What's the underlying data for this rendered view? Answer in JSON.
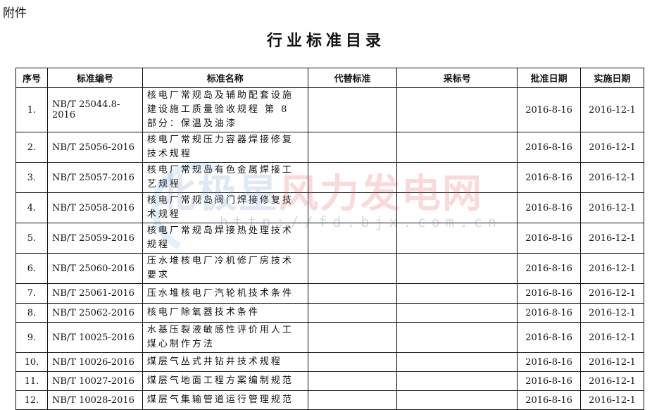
{
  "attachment_label": "附件",
  "title": "行业标准目录",
  "headers": [
    "序号",
    "标准编号",
    "标准名称",
    "代替标准",
    "采标号",
    "批准日期",
    "实施日期"
  ],
  "rows": [
    [
      "1.",
      "NB/T 25044.8-2016",
      "核电厂常规岛及辅助配套设施建设施工质量验收规程 第 8 部分：保温及油漆",
      "",
      "",
      "2016-8-16",
      "2016-12-1"
    ],
    [
      "2.",
      "NB/T 25056-2016",
      "核电厂常规压力容器焊接修复技术规程",
      "",
      "",
      "2016-8-16",
      "2016-12-1"
    ],
    [
      "3.",
      "NB/T 25057-2016",
      "核电厂常规岛有色金属焊接工艺规程",
      "",
      "",
      "2016-8-16",
      "2016-12-1"
    ],
    [
      "4.",
      "NB/T 25058-2016",
      "核电厂常规岛阀门焊接修复技术规程",
      "",
      "",
      "2016-8-16",
      "2016-12-1"
    ],
    [
      "5.",
      "NB/T 25059-2016",
      "核电厂常规岛焊接热处理技术规程",
      "",
      "",
      "2016-8-16",
      "2016-12-1"
    ],
    [
      "6.",
      "NB/T 25060-2016",
      "压水堆核电厂冷机修厂房技术要求",
      "",
      "",
      "2016-8-16",
      "2016-12-1"
    ],
    [
      "7.",
      "NB/T 25061-2016",
      "压水堆核电厂汽轮机技术条件",
      "",
      "",
      "2016-8-16",
      "2016-12-1"
    ],
    [
      "8.",
      "NB/T 25062-2016",
      "核电厂除氧器技术条件",
      "",
      "",
      "2016-8-16",
      "2016-12-1"
    ],
    [
      "9.",
      "NB/T 10025-2016",
      "水基压裂液敏感性评价用人工煤心制作方法",
      "",
      "",
      "2016-8-16",
      "2016-12-1"
    ],
    [
      "10.",
      "NB/T 10026-2016",
      "煤层气丛式井钻井技术规程",
      "",
      "",
      "2016-8-16",
      "2016-12-1"
    ],
    [
      "11.",
      "NB/T 10027-2016",
      "煤层气地面工程方案编制规范",
      "",
      "",
      "2016-8-16",
      "2016-12-1"
    ],
    [
      "12.",
      "NB/T 10028-2016",
      "煤层气集输管道运行管理规范",
      "",
      "",
      "2016-8-16",
      "2016-12-1"
    ]
  ],
  "watermark": {
    "part1": "北极星",
    "part2": "风力发电网",
    "url": "http://fd.bjx.com.cn"
  }
}
